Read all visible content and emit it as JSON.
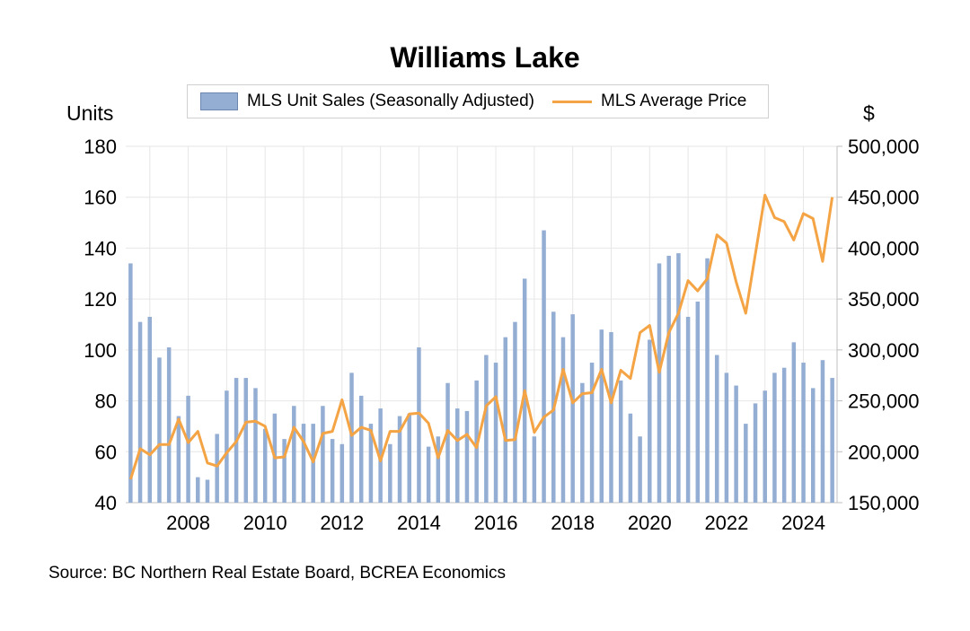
{
  "chart_data": {
    "type": "bar+line",
    "title": "Williams Lake",
    "y_left_label": "Units",
    "y_right_label": "$",
    "y_left_lim": [
      40,
      180
    ],
    "y_right_lim": [
      150000,
      500000
    ],
    "y_left_ticks": [
      "180",
      "160",
      "140",
      "120",
      "100",
      "80",
      "60",
      "40"
    ],
    "y_right_ticks": [
      "500,000",
      "450,000",
      "400,000",
      "350,000",
      "300,000",
      "250,000",
      "200,000",
      "150,000"
    ],
    "x_tick_labels": [
      "2008",
      "2010",
      "2012",
      "2014",
      "2016",
      "2018",
      "2020",
      "2022",
      "2024"
    ],
    "legend": [
      "MLS Unit Sales (Seasonally Adjusted)",
      "MLS Average Price"
    ],
    "colors": {
      "bar": "#94aed3",
      "line": "#f4a444",
      "grid": "#e6e6e6"
    },
    "grid": true,
    "legend_position": "top-center",
    "periods": [
      "2006-Q3",
      "2006-Q4",
      "2007-Q1",
      "2007-Q2",
      "2007-Q3",
      "2007-Q4",
      "2008-Q1",
      "2008-Q2",
      "2008-Q3",
      "2008-Q4",
      "2009-Q1",
      "2009-Q2",
      "2009-Q3",
      "2009-Q4",
      "2010-Q1",
      "2010-Q2",
      "2010-Q3",
      "2010-Q4",
      "2011-Q1",
      "2011-Q2",
      "2011-Q3",
      "2011-Q4",
      "2012-Q1",
      "2012-Q2",
      "2012-Q3",
      "2012-Q4",
      "2013-Q1",
      "2013-Q2",
      "2013-Q3",
      "2013-Q4",
      "2014-Q1",
      "2014-Q2",
      "2014-Q3",
      "2014-Q4",
      "2015-Q1",
      "2015-Q2",
      "2015-Q3",
      "2015-Q4",
      "2016-Q1",
      "2016-Q2",
      "2016-Q3",
      "2016-Q4",
      "2017-Q1",
      "2017-Q2",
      "2017-Q3",
      "2017-Q4",
      "2018-Q1",
      "2018-Q2",
      "2018-Q3",
      "2018-Q4",
      "2019-Q1",
      "2019-Q2",
      "2019-Q3",
      "2019-Q4",
      "2020-Q1",
      "2020-Q2",
      "2020-Q3",
      "2020-Q4",
      "2021-Q1",
      "2021-Q2",
      "2021-Q3",
      "2021-Q4",
      "2022-Q1",
      "2022-Q2",
      "2022-Q3",
      "2022-Q4",
      "2023-Q1",
      "2023-Q2",
      "2023-Q3",
      "2023-Q4",
      "2024-Q1",
      "2024-Q2",
      "2024-Q3",
      "2024-Q4"
    ],
    "series": [
      {
        "name": "MLS Unit Sales (Seasonally Adjusted)",
        "type": "bar",
        "axis": "left",
        "values": [
          134,
          111,
          113,
          97,
          101,
          74,
          82,
          50,
          49,
          67,
          84,
          89,
          89,
          85,
          69,
          75,
          65,
          78,
          71,
          71,
          78,
          65,
          63,
          91,
          82,
          71,
          77,
          63,
          74,
          75,
          101,
          62,
          66,
          87,
          77,
          76,
          88,
          98,
          95,
          105,
          111,
          128,
          66,
          147,
          115,
          105,
          114,
          87,
          95,
          108,
          107,
          88,
          75,
          66,
          104,
          134,
          137,
          138,
          113,
          119,
          136,
          98,
          91,
          86,
          71,
          79,
          84,
          91,
          93,
          103,
          95,
          85,
          96,
          89
        ]
      },
      {
        "name": "MLS Average Price",
        "type": "line",
        "axis": "right",
        "values": [
          173000,
          203000,
          197000,
          207000,
          207000,
          232000,
          209000,
          220000,
          189000,
          186000,
          199000,
          210000,
          229000,
          230000,
          225000,
          194000,
          195000,
          224000,
          210000,
          190000,
          218000,
          220000,
          251000,
          216000,
          224000,
          221000,
          191000,
          220000,
          220000,
          237000,
          238000,
          228000,
          194000,
          221000,
          211000,
          217000,
          204000,
          245000,
          254000,
          211000,
          212000,
          260000,
          219000,
          234000,
          241000,
          281000,
          248000,
          257000,
          258000,
          281000,
          248000,
          280000,
          272000,
          317000,
          324000,
          278000,
          317000,
          336000,
          368000,
          358000,
          370000,
          413000,
          405000,
          367000,
          336000,
          394000,
          452000,
          430000,
          426000,
          408000,
          434000,
          429000,
          387000,
          450000
        ]
      }
    ]
  },
  "source": "Source:  BC Northern Real Estate Board, BCREA Economics"
}
